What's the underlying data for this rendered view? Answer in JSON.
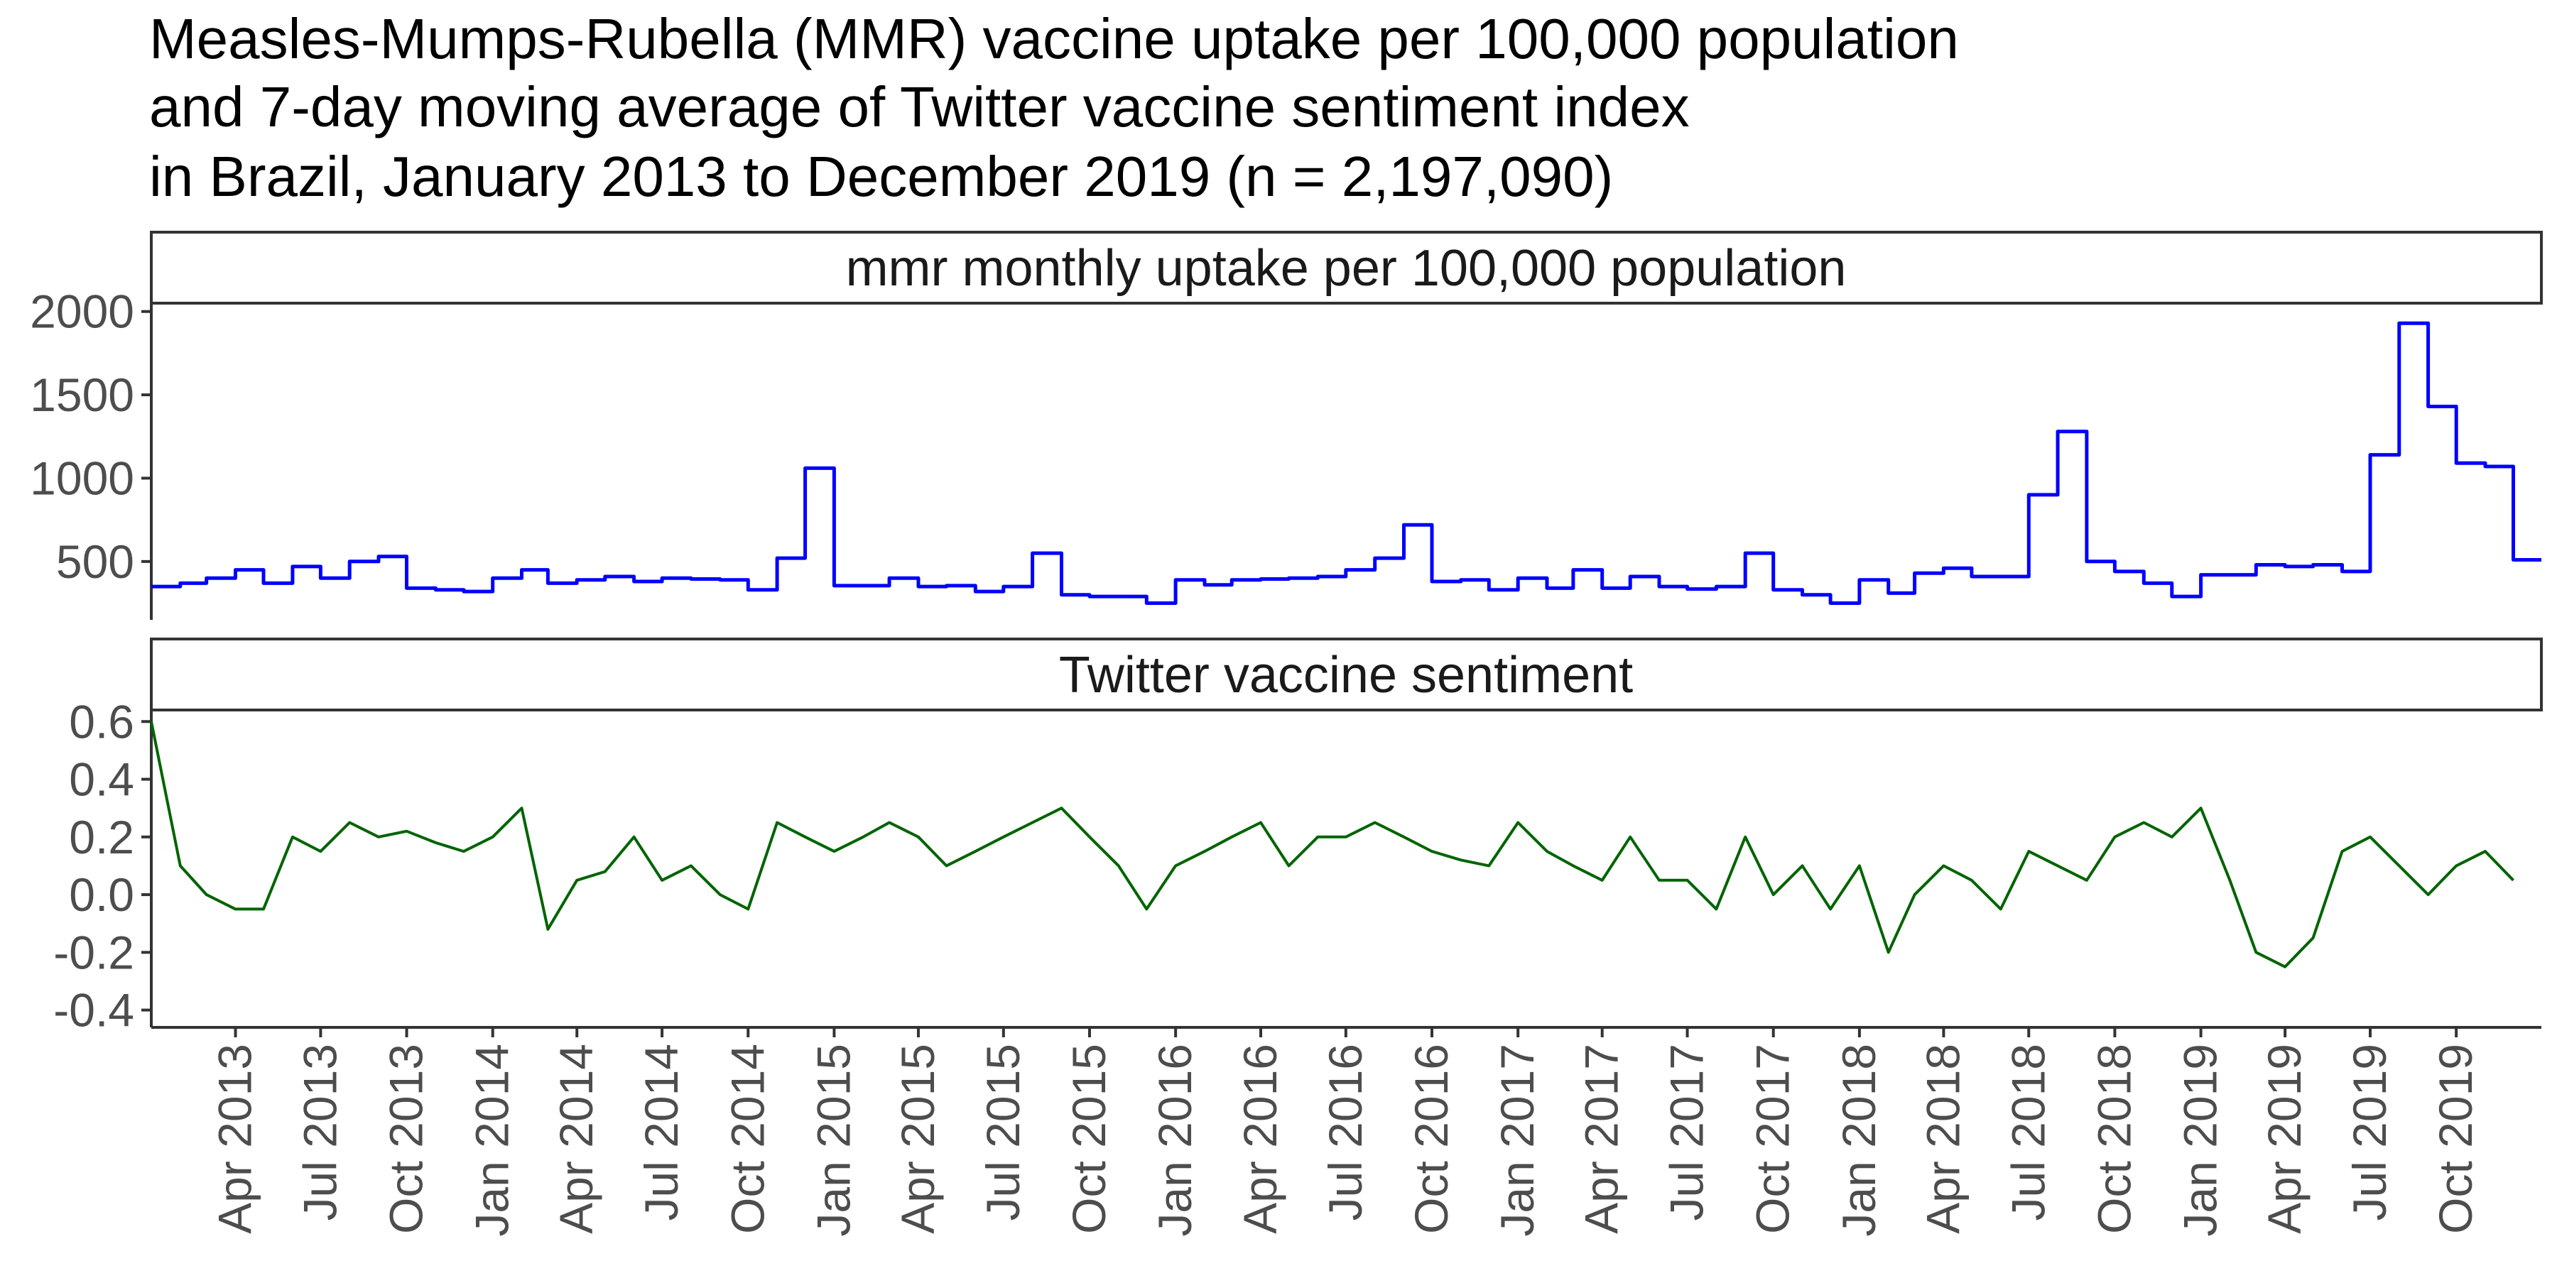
{
  "title": {
    "lines": [
      "Measles-Mumps-Rubella (MMR) vaccine uptake per 100,000 population",
      "and 7-day moving average of Twitter vaccine sentiment index",
      "in Brazil, January 2013 to December 2019 (n = 2,197,090)"
    ]
  },
  "chart_data": {
    "type": "line",
    "x_range": [
      "2013-01-01",
      "2019-12-31"
    ],
    "x_ticks": [
      "Apr 2013",
      "Jul 2013",
      "Oct 2013",
      "Jan 2014",
      "Apr 2014",
      "Jul 2014",
      "Oct 2014",
      "Jan 2015",
      "Apr 2015",
      "Jul 2015",
      "Oct 2015",
      "Jan 2016",
      "Apr 2016",
      "Jul 2016",
      "Oct 2016",
      "Jan 2017",
      "Apr 2017",
      "Jul 2017",
      "Oct 2017",
      "Jan 2018",
      "Apr 2018",
      "Jul 2018",
      "Oct 2018",
      "Jan 2019",
      "Apr 2019",
      "Jul 2019",
      "Oct 2019"
    ],
    "grid": false,
    "legend": "none",
    "panels": [
      {
        "strip": "mmr monthly uptake per 100,000 population",
        "color": "#0000FF",
        "y_ticks": [
          "500",
          "1000",
          "1500",
          "2000"
        ],
        "y_range": [
          150,
          2050
        ],
        "step": true,
        "series": {
          "x": [
            "2013-01",
            "2013-02",
            "2013-03",
            "2013-04",
            "2013-05",
            "2013-06",
            "2013-07",
            "2013-08",
            "2013-09",
            "2013-10",
            "2013-11",
            "2013-12",
            "2014-01",
            "2014-02",
            "2014-03",
            "2014-04",
            "2014-05",
            "2014-06",
            "2014-07",
            "2014-08",
            "2014-09",
            "2014-10",
            "2014-11",
            "2014-12",
            "2015-01",
            "2015-02",
            "2015-03",
            "2015-04",
            "2015-05",
            "2015-06",
            "2015-07",
            "2015-08",
            "2015-09",
            "2015-10",
            "2015-11",
            "2015-12",
            "2016-01",
            "2016-02",
            "2016-03",
            "2016-04",
            "2016-05",
            "2016-06",
            "2016-07",
            "2016-08",
            "2016-09",
            "2016-10",
            "2016-11",
            "2016-12",
            "2017-01",
            "2017-02",
            "2017-03",
            "2017-04",
            "2017-05",
            "2017-06",
            "2017-07",
            "2017-08",
            "2017-09",
            "2017-10",
            "2017-11",
            "2017-12",
            "2018-01",
            "2018-02",
            "2018-03",
            "2018-04",
            "2018-05",
            "2018-06",
            "2018-07",
            "2018-08",
            "2018-09",
            "2018-10",
            "2018-11",
            "2018-12",
            "2019-01",
            "2019-02",
            "2019-03",
            "2019-04",
            "2019-05",
            "2019-06",
            "2019-07",
            "2019-08",
            "2019-09",
            "2019-10",
            "2019-11",
            "2019-12"
          ],
          "y": [
            350,
            370,
            400,
            450,
            370,
            470,
            400,
            500,
            530,
            340,
            330,
            320,
            400,
            450,
            370,
            390,
            410,
            380,
            400,
            395,
            390,
            330,
            520,
            1060,
            355,
            355,
            400,
            350,
            355,
            320,
            350,
            550,
            300,
            290,
            290,
            250,
            390,
            360,
            390,
            395,
            400,
            410,
            450,
            520,
            720,
            380,
            390,
            330,
            400,
            340,
            450,
            340,
            410,
            350,
            335,
            350,
            550,
            330,
            300,
            250,
            390,
            310,
            430,
            460,
            410,
            410,
            900,
            1280,
            500,
            440,
            370,
            290,
            420,
            420,
            480,
            470,
            480,
            440,
            1140,
            1930,
            1430,
            1090,
            1070,
            510
          ]
        }
      },
      {
        "strip": "Twitter vaccine sentiment",
        "color": "#006400",
        "y_ticks": [
          "-0.4",
          "-0.2",
          "0.0",
          "0.2",
          "0.4",
          "0.6"
        ],
        "y_range": [
          -0.46,
          0.64
        ],
        "series": {
          "x": [
            "2013-01-01",
            "2013-02-01",
            "2013-03-01",
            "2013-04-01",
            "2013-05-01",
            "2013-06-01",
            "2013-07-01",
            "2013-08-01",
            "2013-09-01",
            "2013-10-01",
            "2013-11-01",
            "2013-12-01",
            "2014-01-01",
            "2014-02-01",
            "2014-03-01",
            "2014-04-01",
            "2014-05-01",
            "2014-06-01",
            "2014-07-01",
            "2014-08-01",
            "2014-09-01",
            "2014-10-01",
            "2014-11-01",
            "2014-12-01",
            "2015-01-01",
            "2015-02-01",
            "2015-03-01",
            "2015-04-01",
            "2015-05-01",
            "2015-06-01",
            "2015-07-01",
            "2015-08-01",
            "2015-09-01",
            "2015-10-01",
            "2015-11-01",
            "2015-12-01",
            "2016-01-01",
            "2016-02-01",
            "2016-03-01",
            "2016-04-01",
            "2016-05-01",
            "2016-06-01",
            "2016-07-01",
            "2016-08-01",
            "2016-09-01",
            "2016-10-01",
            "2016-11-01",
            "2016-12-01",
            "2017-01-01",
            "2017-02-01",
            "2017-03-01",
            "2017-04-01",
            "2017-05-01",
            "2017-06-01",
            "2017-07-01",
            "2017-08-01",
            "2017-09-01",
            "2017-10-01",
            "2017-11-01",
            "2017-12-01",
            "2018-01-01",
            "2018-02-01",
            "2018-03-01",
            "2018-04-01",
            "2018-05-01",
            "2018-06-01",
            "2018-07-01",
            "2018-08-01",
            "2018-09-01",
            "2018-10-01",
            "2018-11-01",
            "2018-12-01",
            "2019-01-01",
            "2019-02-01",
            "2019-03-01",
            "2019-04-01",
            "2019-05-01",
            "2019-06-01",
            "2019-07-01",
            "2019-08-01",
            "2019-09-01",
            "2019-10-01",
            "2019-11-01",
            "2019-12-01"
          ],
          "y": [
            0.6,
            0.1,
            0.0,
            -0.05,
            -0.05,
            0.2,
            0.15,
            0.25,
            0.2,
            0.22,
            0.18,
            0.15,
            0.2,
            0.3,
            -0.12,
            0.05,
            0.08,
            0.2,
            0.05,
            0.1,
            0.0,
            -0.05,
            0.25,
            0.2,
            0.15,
            0.2,
            0.25,
            0.2,
            0.1,
            0.15,
            0.2,
            0.25,
            0.3,
            0.2,
            0.1,
            -0.05,
            0.1,
            0.15,
            0.2,
            0.25,
            0.1,
            0.2,
            0.2,
            0.25,
            0.2,
            0.15,
            0.12,
            0.1,
            0.25,
            0.15,
            0.1,
            0.05,
            0.2,
            0.05,
            0.05,
            -0.05,
            0.2,
            0.0,
            0.1,
            -0.05,
            0.1,
            -0.2,
            0.0,
            0.1,
            0.05,
            -0.05,
            0.15,
            0.1,
            0.05,
            0.2,
            0.25,
            0.2,
            0.3,
            0.05,
            -0.2,
            -0.25,
            -0.15,
            0.15,
            0.2,
            0.1,
            0.0,
            0.1,
            0.15,
            0.05
          ]
        }
      }
    ]
  }
}
